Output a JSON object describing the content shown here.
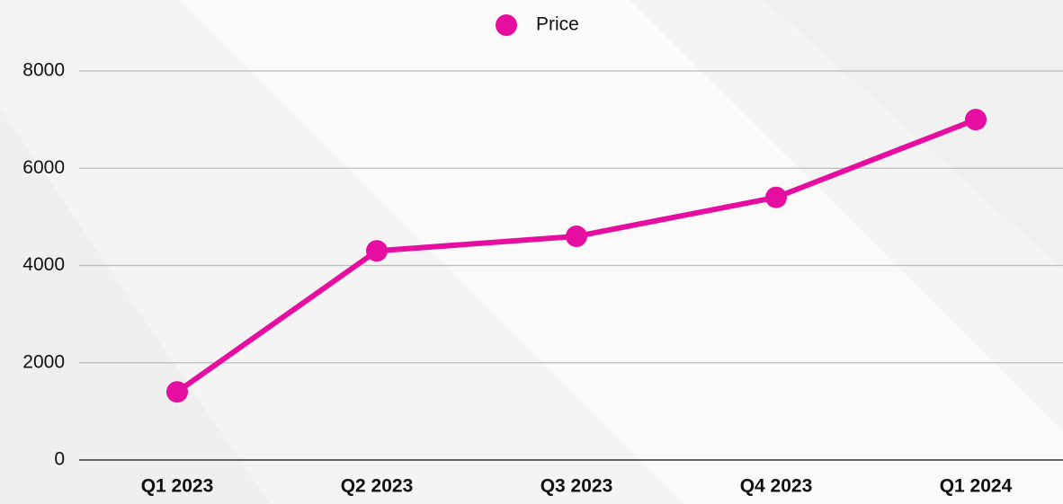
{
  "chart_data": {
    "type": "line",
    "categories": [
      "Q1 2023",
      "Q2 2023",
      "Q3 2023",
      "Q4 2023",
      "Q1 2024"
    ],
    "series": [
      {
        "name": "Price",
        "color": "#e60ea0",
        "values": [
          1400,
          4300,
          4600,
          5400,
          7000
        ]
      }
    ],
    "ylim": [
      0,
      8000
    ],
    "yticks": [
      0,
      2000,
      4000,
      6000,
      8000
    ],
    "grid": true,
    "legend": "top"
  }
}
